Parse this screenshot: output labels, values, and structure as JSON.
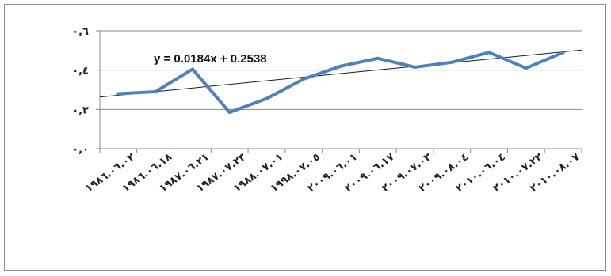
{
  "chart_data": {
    "type": "line",
    "categories": [
      "١٩٨٦.٠٦.٠٢",
      "١٩٨٦.٠٦.١٨",
      "١٩٨٧.٠٦.٢١",
      "١٩٨٧.٠٧.٢٣",
      "١٩٨٨.٠٧.٠١",
      "١٩٩٨.٠٧.٠٥",
      "٢٠٠٩.٠٦.٠١",
      "٢٠٠٩.٠٦.١٧",
      "٢٠٠٩.٠٧.٠٣",
      "٢٠٠٩.٠٨.٠٤",
      "٢٠١٠.٠٦.٠٤",
      "٢٠١٠.٠٧.٢٢",
      "٢٠١٠.٠٨.٠٧"
    ],
    "values": [
      0.28,
      0.29,
      0.405,
      0.185,
      0.255,
      0.355,
      0.42,
      0.46,
      0.415,
      0.44,
      0.49,
      0.41,
      0.49
    ],
    "yticks": [
      "٠,٠",
      "٠,٢",
      "٠,٤",
      "٠,٦"
    ],
    "ylim": [
      0,
      0.6
    ],
    "trendline": {
      "slope": 0.0184,
      "intercept": 0.2538,
      "equation": "y = 0.0184x + 0.2538"
    },
    "grid": true,
    "legend": "none",
    "series_color": "#4f81bd",
    "trend_color": "#1a1a1a"
  }
}
